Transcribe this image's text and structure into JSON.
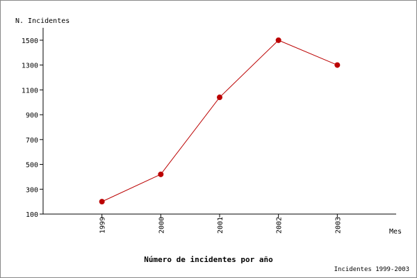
{
  "chart_data": {
    "type": "line",
    "title": "Número de incidentes por año",
    "footnote": "Incidentes 1999-2003",
    "y_label": "N. Incidentes",
    "x_label": "Mes",
    "categories": [
      "1999",
      "2000",
      "2001",
      "2002",
      "2003"
    ],
    "series": [
      {
        "name": "Incidentes",
        "color": "#bb0000",
        "values": [
          200,
          420,
          1040,
          1500,
          1300
        ]
      }
    ],
    "ylim": [
      100,
      1600
    ],
    "yticks": [
      100,
      300,
      500,
      700,
      900,
      1100,
      1300,
      1500
    ]
  }
}
